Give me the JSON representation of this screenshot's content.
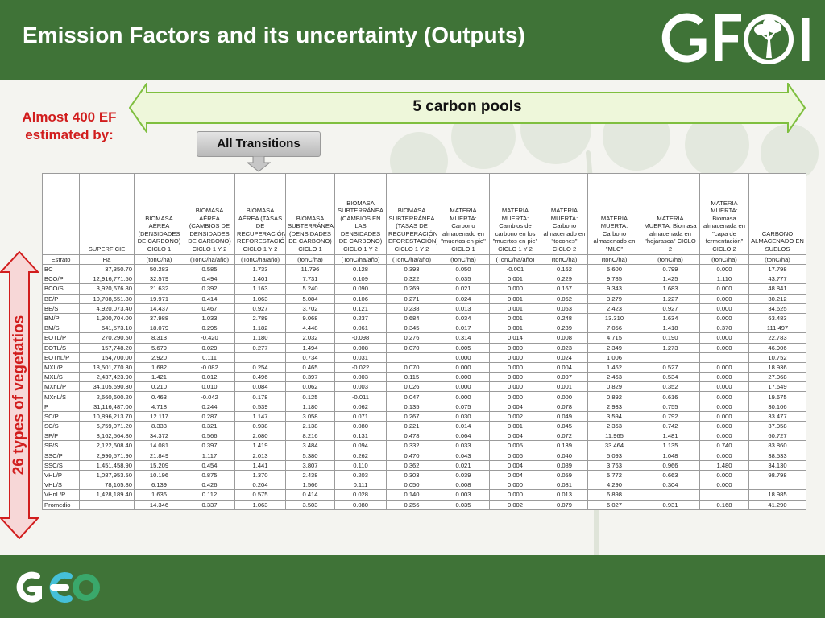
{
  "header": {
    "title": "Emission Factors and its uncertainty (Outputs)",
    "logo_text": "GFOI"
  },
  "annotations": {
    "note": "Almost 400 EF estimated by:",
    "pools_label": "5 carbon pools",
    "transitions_label": "All Transitions",
    "types_label": "26 types of vegetatios"
  },
  "footer": {
    "logo_text": "GEO"
  },
  "colors": {
    "green": "#3f7337",
    "red": "#d11d1d",
    "arrow_fill": "#eef7da",
    "arrow_stroke": "#7fbf3f"
  },
  "table": {
    "headers": [
      "",
      "SUPERFICIE",
      "BIOMASA AÉREA (DENSIDADES DE CARBONO) CICLO 1",
      "BIOMASA AÉREA (CAMBIOS DE DENSIDADES DE CARBONO) CICLO 1 Y 2",
      "BIOMASA AÉREA (TASAS DE RECUPERACIÓN/ REFORESTACIÓN) CICLO 1 Y 2",
      "BIOMASA SUBTERRÁNEA (DENSIDADES DE CARBONO) CICLO 1",
      "BIOMASA SUBTERRÁNEA (CAMBIOS EN LAS DENSIDADES DE CARBONO) CICLO 1 Y 2",
      "BIOMASA SUBTERRÁNEA (TASAS DE RECUPERACIÓN/R EFORESTACIÓN) CICLO 1 Y 2",
      "MATERIA MUERTA: Carbono almacenado en \"muertos en pie\" CICLO 1",
      "MATERIA MUERTA: Cambios de carbono en los \"muertos en pie\" CICLO 1 Y 2",
      "MATERIA MUERTA: Carbono almacenado en \"tocones\" CICLO 2",
      "MATERIA MUERTA: Carbono almacenado en \"MLC\"",
      "MATERIA MUERTA: Biomasa almacenada en \"hojarasca\" CICLO 2",
      "MATERIA MUERTA: Biomasa almacenada en \"capa de fermentación\" CICLO 2",
      "CARBONO ALMACENADO EN SUELOS"
    ],
    "units": [
      "Estrato",
      "Ha",
      "(tonC/ha)",
      "(TonC/ha/año)",
      "(TonC/ha/año)",
      "(tonC/ha)",
      "(TonC/ha/año)",
      "(TonC/ha/año)",
      "(tonC/ha)",
      "(TonC/ha/año)",
      "(tonC/ha)",
      "(tonC/ha)",
      "(tonC/ha)",
      "(tonC/ha)",
      "(tonC/ha)"
    ],
    "rows": [
      [
        "BC",
        "37,350.70",
        "50.283",
        "0.585",
        "1.733",
        "11.796",
        "0.128",
        "0.393",
        "0.050",
        "-0.001",
        "0.162",
        "5.600",
        "0.799",
        "0.000",
        "17.798"
      ],
      [
        "BCO/P",
        "12,916,771.50",
        "32.579",
        "0.494",
        "1.401",
        "7.731",
        "0.109",
        "0.322",
        "0.035",
        "0.001",
        "0.229",
        "9.785",
        "1.425",
        "1.110",
        "43.777"
      ],
      [
        "BCO/S",
        "3,920,676.80",
        "21.632",
        "0.392",
        "1.163",
        "5.240",
        "0.090",
        "0.269",
        "0.021",
        "0.000",
        "0.167",
        "9.343",
        "1.683",
        "0.000",
        "48.841"
      ],
      [
        "BE/P",
        "10,708,651.80",
        "19.971",
        "0.414",
        "1.063",
        "5.084",
        "0.106",
        "0.271",
        "0.024",
        "0.001",
        "0.062",
        "3.279",
        "1.227",
        "0.000",
        "30.212"
      ],
      [
        "BE/S",
        "4,920,073.40",
        "14.437",
        "0.467",
        "0.927",
        "3.702",
        "0.121",
        "0.238",
        "0.013",
        "0.001",
        "0.053",
        "2.423",
        "0.927",
        "0.000",
        "34.625"
      ],
      [
        "BM/P",
        "1,300,704.00",
        "37.988",
        "1.033",
        "2.789",
        "9.068",
        "0.237",
        "0.684",
        "0.034",
        "0.001",
        "0.248",
        "13.310",
        "1.634",
        "0.000",
        "63.483"
      ],
      [
        "BM/S",
        "541,573.10",
        "18.079",
        "0.295",
        "1.182",
        "4.448",
        "0.061",
        "0.345",
        "0.017",
        "0.001",
        "0.239",
        "7.056",
        "1.418",
        "0.370",
        "111.497"
      ],
      [
        "EOTL/P",
        "270,290.50",
        "8.313",
        "-0.420",
        "1.180",
        "2.032",
        "-0.098",
        "0.276",
        "0.314",
        "0.014",
        "0.008",
        "4.715",
        "0.190",
        "0.000",
        "22.783"
      ],
      [
        "EOTL/S",
        "157,748.20",
        "5.679",
        "0.029",
        "0.277",
        "1.494",
        "0.008",
        "0.070",
        "0.005",
        "0.000",
        "0.023",
        "2.349",
        "1.273",
        "0.000",
        "46.906"
      ],
      [
        "EOTnL/P",
        "154,700.00",
        "2.920",
        "0.111",
        "",
        "0.734",
        "0.031",
        "",
        "0.000",
        "0.000",
        "0.024",
        "1.006",
        "",
        "",
        "10.752"
      ],
      [
        "MXL/P",
        "18,501,770.30",
        "1.682",
        "-0.082",
        "0.254",
        "0.465",
        "-0.022",
        "0.070",
        "0.000",
        "0.000",
        "0.004",
        "1.462",
        "0.527",
        "0.000",
        "18.936"
      ],
      [
        "MXL/S",
        "2,437,423.90",
        "1.421",
        "0.012",
        "0.496",
        "0.397",
        "0.003",
        "0.115",
        "0.000",
        "0.000",
        "0.007",
        "2.463",
        "0.534",
        "0.000",
        "27.068"
      ],
      [
        "MXnL/P",
        "34,105,690.30",
        "0.210",
        "0.010",
        "0.084",
        "0.062",
        "0.003",
        "0.026",
        "0.000",
        "0.000",
        "0.001",
        "0.829",
        "0.352",
        "0.000",
        "17.649"
      ],
      [
        "MXnL/S",
        "2,660,600.20",
        "0.463",
        "-0.042",
        "0.178",
        "0.125",
        "-0.011",
        "0.047",
        "0.000",
        "0.000",
        "0.000",
        "0.892",
        "0.616",
        "0.000",
        "19.675"
      ],
      [
        "P",
        "31,116,487.00",
        "4.718",
        "0.244",
        "0.539",
        "1.180",
        "0.062",
        "0.135",
        "0.075",
        "0.004",
        "0.078",
        "2.933",
        "0.755",
        "0.000",
        "30.106"
      ],
      [
        "SC/P",
        "10,896,213.70",
        "12.117",
        "0.287",
        "1.147",
        "3.058",
        "0.071",
        "0.267",
        "0.030",
        "0.002",
        "0.049",
        "3.594",
        "0.792",
        "0.000",
        "33.477"
      ],
      [
        "SC/S",
        "6,759,071.20",
        "8.333",
        "0.321",
        "0.938",
        "2.138",
        "0.080",
        "0.221",
        "0.014",
        "0.001",
        "0.045",
        "2.363",
        "0.742",
        "0.000",
        "37.058"
      ],
      [
        "SP/P",
        "8,162,564.80",
        "34.372",
        "0.566",
        "2.080",
        "8.216",
        "0.131",
        "0.478",
        "0.064",
        "0.004",
        "0.072",
        "11.965",
        "1.481",
        "0.000",
        "60.727"
      ],
      [
        "SP/S",
        "2,122,608.40",
        "14.081",
        "0.397",
        "1.419",
        "3.484",
        "0.094",
        "0.332",
        "0.033",
        "0.005",
        "0.139",
        "33.464",
        "1.135",
        "0.740",
        "83.860"
      ],
      [
        "SSC/P",
        "2,990,571.90",
        "21.849",
        "1.117",
        "2.013",
        "5.380",
        "0.262",
        "0.470",
        "0.043",
        "0.006",
        "0.040",
        "5.093",
        "1.048",
        "0.000",
        "38.533"
      ],
      [
        "SSC/S",
        "1,451,458.90",
        "15.209",
        "0.454",
        "1.441",
        "3.807",
        "0.110",
        "0.362",
        "0.021",
        "0.004",
        "0.089",
        "3.763",
        "0.966",
        "1.480",
        "34.130"
      ],
      [
        "VHL/P",
        "1,087,953.50",
        "10.196",
        "0.875",
        "1.370",
        "2.438",
        "0.203",
        "0.303",
        "0.039",
        "0.004",
        "0.059",
        "5.772",
        "0.663",
        "0.000",
        "98.798"
      ],
      [
        "VHL/S",
        "78,105.80",
        "6.139",
        "0.426",
        "0.204",
        "1.566",
        "0.111",
        "0.050",
        "0.008",
        "0.000",
        "0.081",
        "4.290",
        "0.304",
        "0.000",
        ""
      ],
      [
        "VHnL/P",
        "1,428,189.40",
        "1.636",
        "0.112",
        "0.575",
        "0.414",
        "0.028",
        "0.140",
        "0.003",
        "0.000",
        "0.013",
        "6.898",
        "",
        "",
        "18.985"
      ],
      [
        "Promedio",
        "",
        "14.346",
        "0.337",
        "1.063",
        "3.503",
        "0.080",
        "0.256",
        "0.035",
        "0.002",
        "0.079",
        "6.027",
        "0.931",
        "0.168",
        "41.290"
      ]
    ]
  }
}
